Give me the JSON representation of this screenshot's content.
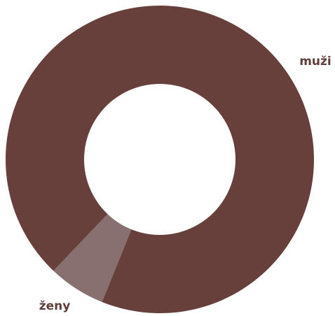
{
  "chart_data": {
    "type": "donut",
    "categories": [
      "muži",
      "ženy"
    ],
    "values": [
      94,
      6
    ],
    "colors": [
      "#673f3b",
      "#87706f"
    ]
  }
}
